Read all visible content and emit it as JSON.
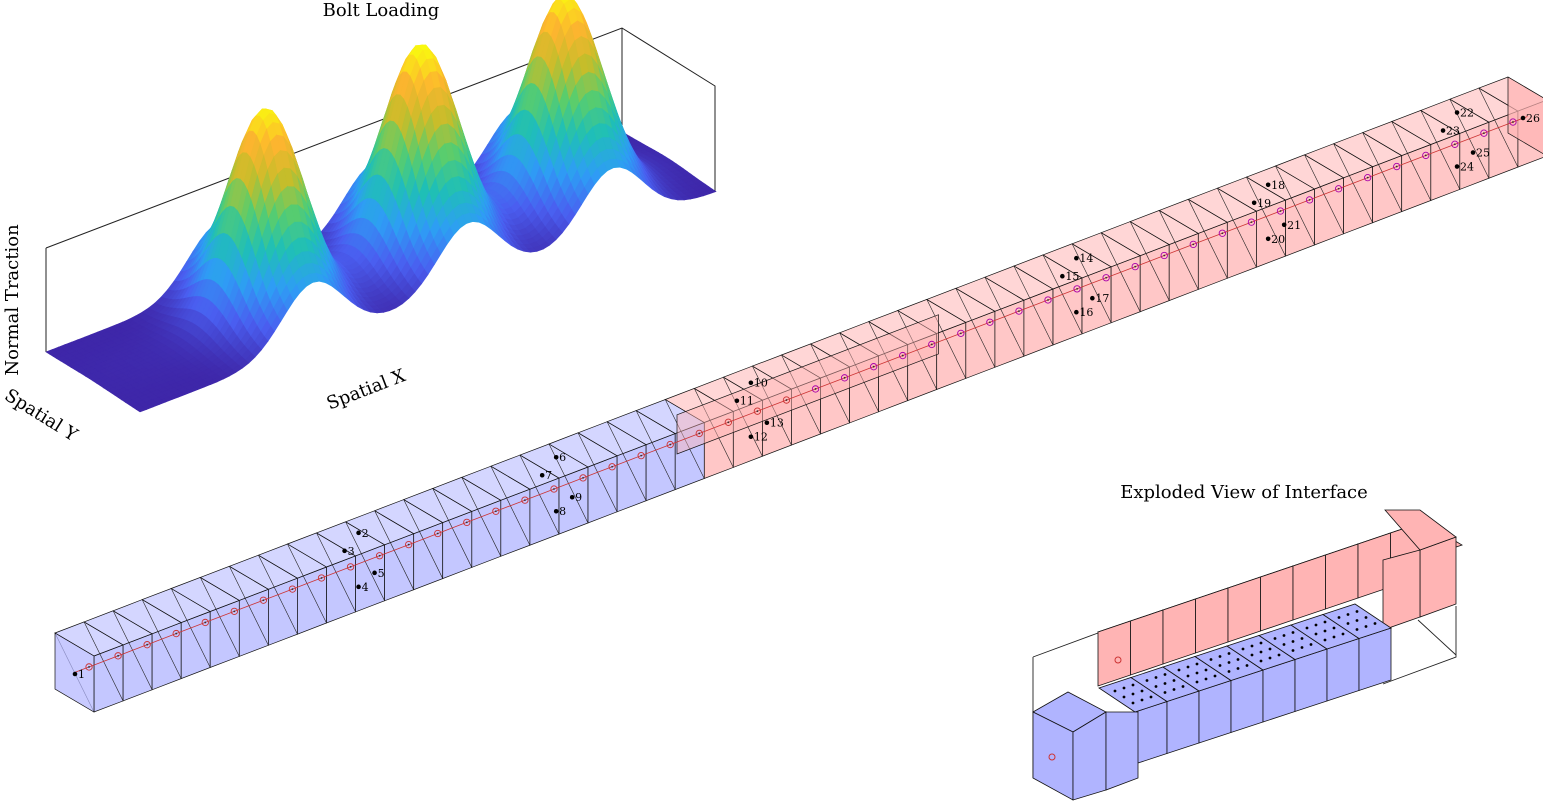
{
  "surface_plot": {
    "title": "Bolt Loading",
    "xlabel": "Spatial X",
    "ylabel": "Spatial Y",
    "zlabel": "Normal Traction",
    "peaks": 3,
    "colormap": [
      "#3e26a8",
      "#4a5ef0",
      "#2e9df5",
      "#1fbfb7",
      "#59cd6d",
      "#c6bd2a",
      "#fdb52f",
      "#f9fb0e"
    ]
  },
  "bolt_mesh": {
    "node_labels": [
      "1",
      "2",
      "3",
      "4",
      "5",
      "6",
      "7",
      "8",
      "9",
      "10",
      "11",
      "12",
      "13",
      "14",
      "15",
      "16",
      "17",
      "18",
      "19",
      "20",
      "21",
      "22",
      "23",
      "24",
      "25",
      "26"
    ],
    "lower_color": "#b0b4ff",
    "upper_color": "#ffb4b4"
  },
  "exploded_view": {
    "title": "Exploded View of Interface"
  }
}
